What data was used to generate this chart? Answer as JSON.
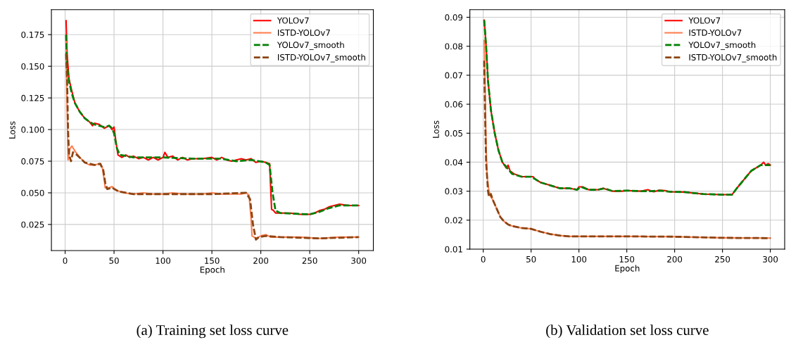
{
  "chart_data": [
    {
      "type": "line",
      "title": "(a) Training set loss curve",
      "xlabel": "Epoch",
      "ylabel": "Loss",
      "xlim": [
        -14,
        315
      ],
      "ylim": [
        0.0044,
        0.1947
      ],
      "xticks": [
        0,
        50,
        100,
        150,
        200,
        250,
        300
      ],
      "yticks": [
        {
          "value": 0.025,
          "label": "0.025"
        },
        {
          "value": 0.05,
          "label": "0.050"
        },
        {
          "value": 0.075,
          "label": "0.075"
        },
        {
          "value": 0.1,
          "label": "0.100"
        },
        {
          "value": 0.125,
          "label": "0.125"
        },
        {
          "value": 0.15,
          "label": "0.150"
        },
        {
          "value": 0.175,
          "label": "0.175"
        }
      ],
      "grid": true,
      "legend": "top right",
      "series": [
        {
          "name": "YOLOv7",
          "color": "#ff0000",
          "line_style": "solid",
          "x": [
            1,
            2,
            4,
            7,
            10,
            15,
            20,
            25,
            28,
            30,
            35,
            40,
            45,
            48,
            50,
            52,
            54,
            58,
            62,
            66,
            70,
            75,
            80,
            85,
            90,
            95,
            100,
            102,
            105,
            110,
            115,
            120,
            125,
            130,
            140,
            150,
            155,
            160,
            165,
            170,
            175,
            180,
            185,
            190,
            195,
            200,
            205,
            209,
            210,
            211,
            213,
            215,
            220,
            230,
            240,
            250,
            255,
            260,
            265,
            270,
            275,
            280,
            290,
            300
          ],
          "values": [
            0.186,
            0.16,
            0.14,
            0.13,
            0.121,
            0.114,
            0.109,
            0.106,
            0.103,
            0.105,
            0.104,
            0.101,
            0.103,
            0.1,
            0.102,
            0.09,
            0.08,
            0.078,
            0.08,
            0.078,
            0.079,
            0.077,
            0.078,
            0.076,
            0.078,
            0.076,
            0.078,
            0.082,
            0.078,
            0.079,
            0.076,
            0.078,
            0.076,
            0.077,
            0.077,
            0.078,
            0.076,
            0.078,
            0.076,
            0.075,
            0.076,
            0.077,
            0.076,
            0.077,
            0.074,
            0.075,
            0.074,
            0.073,
            0.055,
            0.037,
            0.036,
            0.034,
            0.034,
            0.034,
            0.033,
            0.033,
            0.034,
            0.036,
            0.037,
            0.039,
            0.04,
            0.041,
            0.04,
            0.04
          ]
        },
        {
          "name": "ISTD-YOLOv7",
          "color": "#ff7f50",
          "line_style": "solid",
          "x": [
            1,
            2,
            3,
            5,
            7,
            10,
            15,
            20,
            25,
            30,
            35,
            38,
            40,
            41,
            45,
            48,
            52,
            60,
            70,
            80,
            90,
            100,
            110,
            120,
            130,
            140,
            150,
            160,
            170,
            180,
            185,
            188,
            190,
            191,
            193,
            195,
            200,
            205,
            210,
            220,
            240,
            260,
            280,
            300
          ],
          "values": [
            0.17,
            0.12,
            0.076,
            0.085,
            0.087,
            0.083,
            0.078,
            0.074,
            0.072,
            0.072,
            0.073,
            0.07,
            0.06,
            0.054,
            0.054,
            0.055,
            0.052,
            0.05,
            0.049,
            0.05,
            0.049,
            0.049,
            0.05,
            0.049,
            0.049,
            0.049,
            0.05,
            0.049,
            0.049,
            0.049,
            0.05,
            0.048,
            0.03,
            0.016,
            0.015,
            0.014,
            0.016,
            0.017,
            0.015,
            0.015,
            0.015,
            0.014,
            0.015,
            0.015
          ]
        },
        {
          "name": "YOLOv7_smooth",
          "color": "#008000",
          "line_style": "dashed",
          "x": [
            1,
            2,
            4,
            7,
            10,
            15,
            20,
            25,
            30,
            40,
            45,
            48,
            50,
            53,
            56,
            70,
            100,
            130,
            160,
            175,
            190,
            205,
            209,
            212,
            215,
            220,
            250,
            260,
            270,
            280,
            300
          ],
          "values": [
            0.175,
            0.15,
            0.138,
            0.128,
            0.121,
            0.114,
            0.109,
            0.106,
            0.104,
            0.102,
            0.103,
            0.101,
            0.097,
            0.085,
            0.08,
            0.078,
            0.078,
            0.077,
            0.077,
            0.075,
            0.076,
            0.074,
            0.072,
            0.05,
            0.036,
            0.034,
            0.033,
            0.035,
            0.038,
            0.04,
            0.04
          ]
        },
        {
          "name": "ISTD-YOLOv7_smooth",
          "color": "#8b4513",
          "line_style": "dashed",
          "x": [
            1,
            2,
            3,
            4,
            6,
            8,
            12,
            20,
            30,
            36,
            39,
            41,
            43,
            48,
            55,
            70,
            100,
            150,
            185,
            189,
            192,
            195,
            198,
            205,
            220,
            260,
            300
          ],
          "values": [
            0.16,
            0.14,
            0.1,
            0.08,
            0.075,
            0.082,
            0.08,
            0.074,
            0.072,
            0.073,
            0.068,
            0.058,
            0.053,
            0.054,
            0.051,
            0.049,
            0.049,
            0.049,
            0.05,
            0.045,
            0.025,
            0.013,
            0.015,
            0.016,
            0.015,
            0.014,
            0.015
          ]
        }
      ]
    },
    {
      "type": "line",
      "title": "(b) Validation set loss curve",
      "xlabel": "Epoch",
      "ylabel": "Loss",
      "xlim": [
        -14,
        315
      ],
      "ylim": [
        0.01,
        0.0926
      ],
      "xticks": [
        0,
        50,
        100,
        150,
        200,
        250,
        300
      ],
      "yticks": [
        {
          "value": 0.01,
          "label": "0.01"
        },
        {
          "value": 0.02,
          "label": "0.02"
        },
        {
          "value": 0.03,
          "label": "0.03"
        },
        {
          "value": 0.04,
          "label": "0.04"
        },
        {
          "value": 0.05,
          "label": "0.05"
        },
        {
          "value": 0.06,
          "label": "0.06"
        },
        {
          "value": 0.07,
          "label": "0.07"
        },
        {
          "value": 0.08,
          "label": "0.08"
        },
        {
          "value": 0.09,
          "label": "0.09"
        }
      ],
      "grid": true,
      "legend": "top right",
      "series": [
        {
          "name": "YOLOv7",
          "color": "#ff0000",
          "line_style": "solid",
          "x": [
            1,
            3,
            5,
            8,
            12,
            16,
            20,
            24,
            26,
            28,
            32,
            40,
            48,
            52,
            55,
            60,
            70,
            80,
            90,
            98,
            100,
            104,
            110,
            120,
            125,
            130,
            135,
            145,
            150,
            165,
            172,
            178,
            184,
            190,
            195,
            210,
            230,
            250,
            260,
            265,
            270,
            275,
            280,
            285,
            290,
            293,
            295,
            298,
            300
          ],
          "values": [
            0.089,
            0.08,
            0.068,
            0.058,
            0.05,
            0.044,
            0.04,
            0.038,
            0.039,
            0.037,
            0.036,
            0.035,
            0.035,
            0.035,
            0.034,
            0.033,
            0.032,
            0.031,
            0.031,
            0.0305,
            0.0315,
            0.0315,
            0.0305,
            0.0305,
            0.031,
            0.0305,
            0.03,
            0.03,
            0.0302,
            0.03,
            0.0305,
            0.0298,
            0.0303,
            0.0302,
            0.0298,
            0.0297,
            0.029,
            0.0288,
            0.0288,
            0.031,
            0.033,
            0.035,
            0.037,
            0.038,
            0.039,
            0.04,
            0.039,
            0.0395,
            0.039
          ]
        },
        {
          "name": "ISTD-YOLOv7",
          "color": "#ff7f50",
          "line_style": "solid",
          "x": [
            1,
            2,
            3,
            4,
            6,
            8,
            10,
            14,
            18,
            22,
            26,
            30,
            40,
            50,
            55,
            60,
            70,
            80,
            90,
            100,
            150,
            200,
            250,
            300
          ],
          "values": [
            0.082,
            0.065,
            0.045,
            0.035,
            0.03,
            0.028,
            0.027,
            0.024,
            0.021,
            0.0195,
            0.0185,
            0.018,
            0.0173,
            0.017,
            0.0165,
            0.016,
            0.0152,
            0.0147,
            0.0144,
            0.0144,
            0.0144,
            0.0143,
            0.0139,
            0.0138
          ]
        },
        {
          "name": "YOLOv7_smooth",
          "color": "#008000",
          "line_style": "dashed",
          "x": [
            1,
            3,
            5,
            8,
            12,
            16,
            20,
            25,
            30,
            40,
            50,
            55,
            60,
            70,
            80,
            90,
            98,
            102,
            110,
            120,
            127,
            135,
            150,
            165,
            175,
            185,
            195,
            210,
            230,
            250,
            260,
            265,
            270,
            280,
            290,
            300
          ],
          "values": [
            0.089,
            0.08,
            0.068,
            0.058,
            0.05,
            0.044,
            0.04,
            0.038,
            0.036,
            0.035,
            0.035,
            0.034,
            0.033,
            0.032,
            0.031,
            0.031,
            0.0305,
            0.0315,
            0.0305,
            0.0305,
            0.031,
            0.03,
            0.0302,
            0.03,
            0.03,
            0.0302,
            0.0298,
            0.0297,
            0.029,
            0.0288,
            0.0288,
            0.031,
            0.033,
            0.037,
            0.039,
            0.039
          ]
        },
        {
          "name": "ISTD-YOLOv7_smooth",
          "color": "#8b4513",
          "line_style": "dashed",
          "x": [
            1,
            2,
            3,
            5,
            6,
            8,
            10,
            14,
            18,
            22,
            26,
            30,
            40,
            50,
            55,
            60,
            70,
            80,
            90,
            100,
            150,
            200,
            250,
            300
          ],
          "values": [
            0.075,
            0.055,
            0.04,
            0.03,
            0.028,
            0.029,
            0.027,
            0.024,
            0.021,
            0.0195,
            0.0185,
            0.018,
            0.0173,
            0.017,
            0.0165,
            0.016,
            0.0152,
            0.0147,
            0.0144,
            0.0144,
            0.0144,
            0.0143,
            0.0139,
            0.0138
          ]
        }
      ]
    }
  ]
}
